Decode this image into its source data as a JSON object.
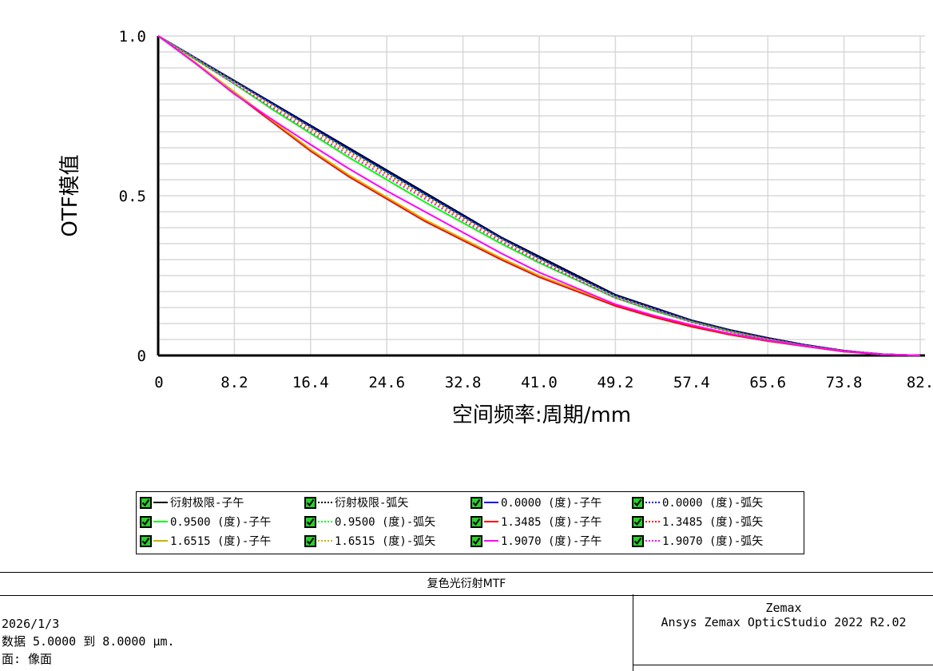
{
  "chart_data": {
    "type": "line",
    "title": "",
    "xlabel": "空间频率:周期/mm",
    "ylabel": "OTF模值",
    "xlim": [
      0,
      82
    ],
    "ylim": [
      0,
      1
    ],
    "x_ticks": [
      "0",
      "8.2",
      "16.4",
      "24.6",
      "32.8",
      "41.0",
      "49.2",
      "57.4",
      "65.6",
      "73.8",
      "82."
    ],
    "y_ticks": [
      "0",
      "0.5",
      "1.0"
    ],
    "grid": true,
    "x": [
      0,
      4.1,
      8.2,
      12.3,
      16.4,
      20.5,
      24.6,
      28.7,
      32.8,
      36.9,
      41.0,
      45.1,
      49.2,
      53.3,
      57.4,
      61.5,
      65.6,
      69.7,
      73.8,
      77.9,
      82
    ],
    "series": [
      {
        "name": "衍射极限-子午",
        "color": "#000000",
        "dash": "solid",
        "values": [
          1.0,
          0.93,
          0.86,
          0.79,
          0.72,
          0.65,
          0.58,
          0.51,
          0.44,
          0.37,
          0.31,
          0.25,
          0.19,
          0.15,
          0.11,
          0.08,
          0.055,
          0.033,
          0.015,
          0.004,
          0.0
        ]
      },
      {
        "name": "衍射极限-弧矢",
        "color": "#000000",
        "dash": "dotted",
        "values": [
          1.0,
          0.93,
          0.86,
          0.79,
          0.72,
          0.65,
          0.58,
          0.51,
          0.44,
          0.37,
          0.31,
          0.25,
          0.19,
          0.15,
          0.11,
          0.08,
          0.055,
          0.033,
          0.015,
          0.004,
          0.0
        ]
      },
      {
        "name": "0.0000 (度)-子午",
        "color": "#0000ff",
        "dash": "solid",
        "values": [
          1.0,
          0.929,
          0.858,
          0.787,
          0.716,
          0.645,
          0.575,
          0.505,
          0.436,
          0.367,
          0.305,
          0.245,
          0.187,
          0.147,
          0.108,
          0.078,
          0.053,
          0.032,
          0.014,
          0.004,
          0.0
        ]
      },
      {
        "name": "0.0000 (度)-弧矢",
        "color": "#0000ff",
        "dash": "dotted",
        "values": [
          1.0,
          0.929,
          0.858,
          0.787,
          0.716,
          0.645,
          0.575,
          0.505,
          0.436,
          0.367,
          0.305,
          0.245,
          0.187,
          0.147,
          0.108,
          0.078,
          0.053,
          0.032,
          0.014,
          0.004,
          0.0
        ]
      },
      {
        "name": "0.9500 (度)-子午",
        "color": "#00ff00",
        "dash": "solid",
        "values": [
          1.0,
          0.925,
          0.85,
          0.77,
          0.695,
          0.62,
          0.55,
          0.48,
          0.415,
          0.35,
          0.29,
          0.235,
          0.18,
          0.14,
          0.105,
          0.075,
          0.05,
          0.03,
          0.013,
          0.003,
          0.0
        ]
      },
      {
        "name": "0.9500 (度)-弧矢",
        "color": "#00ff00",
        "dash": "dotted",
        "values": [
          1.0,
          0.929,
          0.857,
          0.785,
          0.713,
          0.642,
          0.572,
          0.502,
          0.433,
          0.365,
          0.303,
          0.243,
          0.186,
          0.146,
          0.107,
          0.077,
          0.052,
          0.031,
          0.014,
          0.004,
          0.0
        ]
      },
      {
        "name": "1.3485 (度)-子午",
        "color": "#ff0000",
        "dash": "solid",
        "values": [
          1.0,
          0.915,
          0.82,
          0.73,
          0.64,
          0.56,
          0.49,
          0.42,
          0.36,
          0.3,
          0.245,
          0.2,
          0.155,
          0.12,
          0.09,
          0.065,
          0.045,
          0.028,
          0.012,
          0.003,
          0.0
        ]
      },
      {
        "name": "1.3485 (度)-弧矢",
        "color": "#ff0000",
        "dash": "dotted",
        "values": [
          1.0,
          0.928,
          0.855,
          0.782,
          0.71,
          0.638,
          0.568,
          0.498,
          0.43,
          0.362,
          0.3,
          0.241,
          0.184,
          0.145,
          0.106,
          0.076,
          0.052,
          0.031,
          0.014,
          0.004,
          0.0
        ]
      },
      {
        "name": "1.6515 (度)-子午",
        "color": "#c8b400",
        "dash": "solid",
        "values": [
          1.0,
          0.915,
          0.825,
          0.735,
          0.645,
          0.565,
          0.495,
          0.425,
          0.365,
          0.305,
          0.25,
          0.205,
          0.16,
          0.125,
          0.095,
          0.068,
          0.047,
          0.029,
          0.013,
          0.003,
          0.0
        ]
      },
      {
        "name": "1.6515 (度)-弧矢",
        "color": "#c8b400",
        "dash": "dotted",
        "values": [
          1.0,
          0.927,
          0.853,
          0.78,
          0.707,
          0.635,
          0.565,
          0.495,
          0.427,
          0.36,
          0.298,
          0.24,
          0.183,
          0.144,
          0.105,
          0.075,
          0.051,
          0.031,
          0.014,
          0.004,
          0.0
        ]
      },
      {
        "name": "1.9070 (度)-子午",
        "color": "#ff00ff",
        "dash": "solid",
        "values": [
          1.0,
          0.912,
          0.818,
          0.738,
          0.66,
          0.585,
          0.515,
          0.45,
          0.385,
          0.32,
          0.26,
          0.21,
          0.16,
          0.125,
          0.095,
          0.068,
          0.047,
          0.029,
          0.013,
          0.003,
          0.0
        ]
      },
      {
        "name": "1.9070 (度)-弧矢",
        "color": "#ff00ff",
        "dash": "dotted",
        "values": [
          1.0,
          0.925,
          0.85,
          0.775,
          0.7,
          0.628,
          0.558,
          0.49,
          0.422,
          0.356,
          0.294,
          0.237,
          0.18,
          0.142,
          0.104,
          0.074,
          0.05,
          0.03,
          0.013,
          0.003,
          0.0
        ]
      }
    ]
  },
  "legend": {
    "items": [
      {
        "label": "衍射极限-子午",
        "color": "#000000",
        "dash": "solid"
      },
      {
        "label": "衍射极限-弧矢",
        "color": "#000000",
        "dash": "dotted"
      },
      {
        "label": "0.0000 (度)-子午",
        "color": "#0000ff",
        "dash": "solid"
      },
      {
        "label": "0.0000 (度)-弧矢",
        "color": "#0000ff",
        "dash": "dotted"
      },
      {
        "label": "0.9500 (度)-子午",
        "color": "#00ff00",
        "dash": "solid"
      },
      {
        "label": "0.9500 (度)-弧矢",
        "color": "#00ff00",
        "dash": "dotted"
      },
      {
        "label": "1.3485 (度)-子午",
        "color": "#ff0000",
        "dash": "solid"
      },
      {
        "label": "1.3485 (度)-弧矢",
        "color": "#ff0000",
        "dash": "dotted"
      },
      {
        "label": "1.6515 (度)-子午",
        "color": "#c8b400",
        "dash": "solid"
      },
      {
        "label": "1.6515 (度)-弧矢",
        "color": "#c8b400",
        "dash": "dotted"
      },
      {
        "label": "1.9070 (度)-子午",
        "color": "#ff00ff",
        "dash": "solid"
      },
      {
        "label": "1.9070 (度)-弧矢",
        "color": "#ff00ff",
        "dash": "dotted"
      }
    ]
  },
  "footer": {
    "title": "复色光衍射MTF",
    "date": "2026/1/3",
    "data_range": "数据 5.0000 到 8.0000 μm.",
    "surface": "面: 像面",
    "company": "Zemax",
    "product": "Ansys Zemax OpticStudio 2022 R2.02"
  }
}
